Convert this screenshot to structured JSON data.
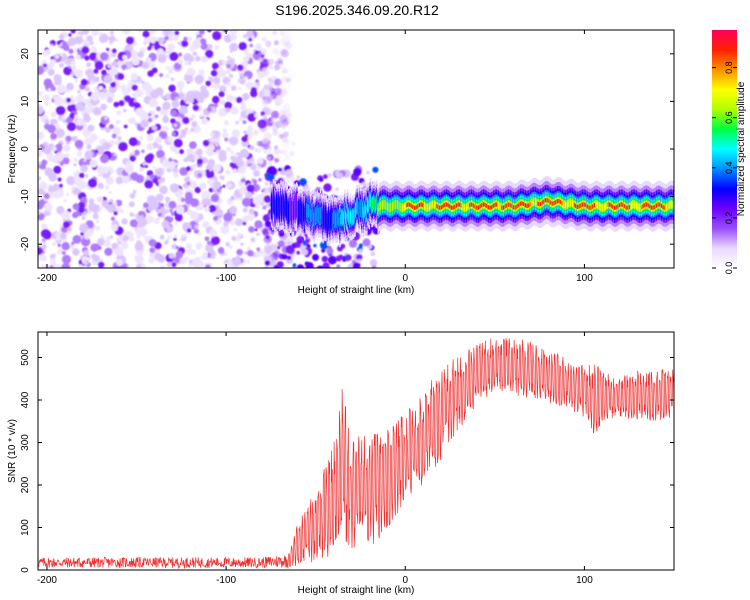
{
  "title": "S196.2025.346.09.20.R12",
  "chart_data": [
    {
      "type": "heatmap",
      "xlabel": "Height of straight line (km)",
      "ylabel": "Frequency (Hz)",
      "xlim": [
        -205,
        150
      ],
      "ylim": [
        -25,
        25
      ],
      "xticks": [
        -200,
        -100,
        0,
        100
      ],
      "yticks": [
        -20,
        -10,
        0,
        10,
        20
      ],
      "colorbar": {
        "label": "Normalized spectral amplitude",
        "range": [
          0,
          0.95
        ],
        "ticks": [
          0.0,
          0.2,
          0.4,
          0.6,
          0.8
        ],
        "colors": [
          "#ffffff",
          "#e8d8ff",
          "#9a4dff",
          "#6a00ff",
          "#0000ff",
          "#0090ff",
          "#00ffff",
          "#00ff40",
          "#b0ff00",
          "#ffff00",
          "#ff9000",
          "#ff2000",
          "#ff0060"
        ]
      },
      "noise_region": {
        "x_from": -205,
        "x_to": -72,
        "freq_from": -25,
        "freq_to": 25,
        "amplitude": 0.15
      },
      "signal_track": {
        "x": [
          -72,
          -60,
          -50,
          -40,
          -30,
          -20,
          -10,
          0,
          20,
          60,
          80,
          100,
          150
        ],
        "freq": [
          -12,
          -13,
          -14,
          -15,
          -14,
          -12,
          -12,
          -12,
          -12,
          -12,
          -11,
          -12,
          -12
        ],
        "amplitude": [
          0.3,
          0.35,
          0.4,
          0.45,
          0.5,
          0.6,
          0.7,
          0.85,
          0.9,
          0.92,
          0.9,
          0.88,
          0.9
        ]
      }
    },
    {
      "type": "line",
      "xlabel": "Height of straight line (km)",
      "ylabel": "SNR (10 * v/v)",
      "xlim": [
        -205,
        150
      ],
      "ylim": [
        0,
        560
      ],
      "xticks": [
        -200,
        -100,
        0,
        100
      ],
      "yticks": [
        0,
        100,
        200,
        300,
        400,
        500
      ],
      "series": [
        {
          "name": "SNR",
          "color": "#ee3030",
          "envelope_x": [
            -205,
            -80,
            -65,
            -60,
            -50,
            -40,
            -35,
            -30,
            -20,
            -10,
            0,
            10,
            20,
            30,
            40,
            50,
            60,
            70,
            80,
            90,
            100,
            105,
            110,
            120,
            130,
            140,
            150
          ],
          "envelope_low": [
            5,
            5,
            5,
            10,
            20,
            30,
            40,
            40,
            50,
            90,
            150,
            200,
            260,
            330,
            390,
            420,
            410,
            400,
            390,
            380,
            360,
            300,
            350,
            360,
            350,
            350,
            360
          ],
          "envelope_high": [
            30,
            30,
            40,
            110,
            190,
            300,
            440,
            330,
            310,
            350,
            370,
            420,
            480,
            515,
            530,
            550,
            545,
            540,
            520,
            500,
            480,
            490,
            470,
            460,
            470,
            470,
            480
          ]
        }
      ]
    }
  ]
}
